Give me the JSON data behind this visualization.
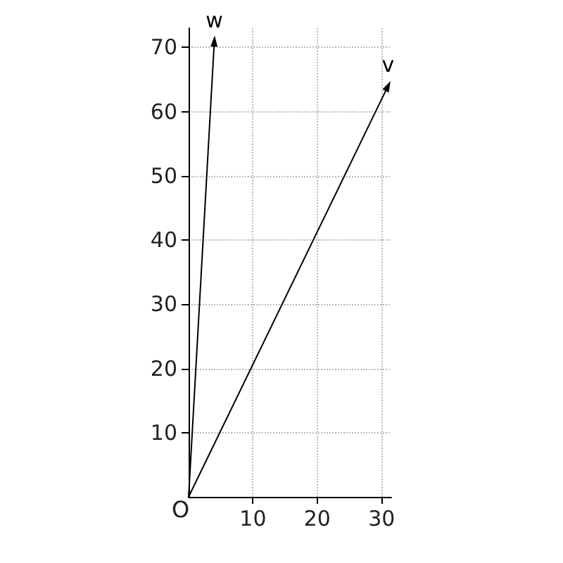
{
  "chart_data": {
    "type": "line",
    "series": [
      {
        "name": "w",
        "color": "#000000",
        "x": [
          0,
          4
        ],
        "values": [
          0,
          71
        ]
      },
      {
        "name": "v",
        "color": "#000000",
        "x": [
          0,
          31
        ],
        "values": [
          0,
          64
        ]
      }
    ],
    "xlim": [
      0,
      31.5
    ],
    "ylim": [
      0,
      73
    ],
    "xticks": [
      10,
      20,
      30
    ],
    "yticks": [
      10,
      20,
      30,
      40,
      50,
      60,
      70
    ],
    "grid": true,
    "line_style": "solid",
    "legend": false,
    "annotations": [
      {
        "text": "O",
        "x": 0,
        "y": 0
      }
    ]
  }
}
